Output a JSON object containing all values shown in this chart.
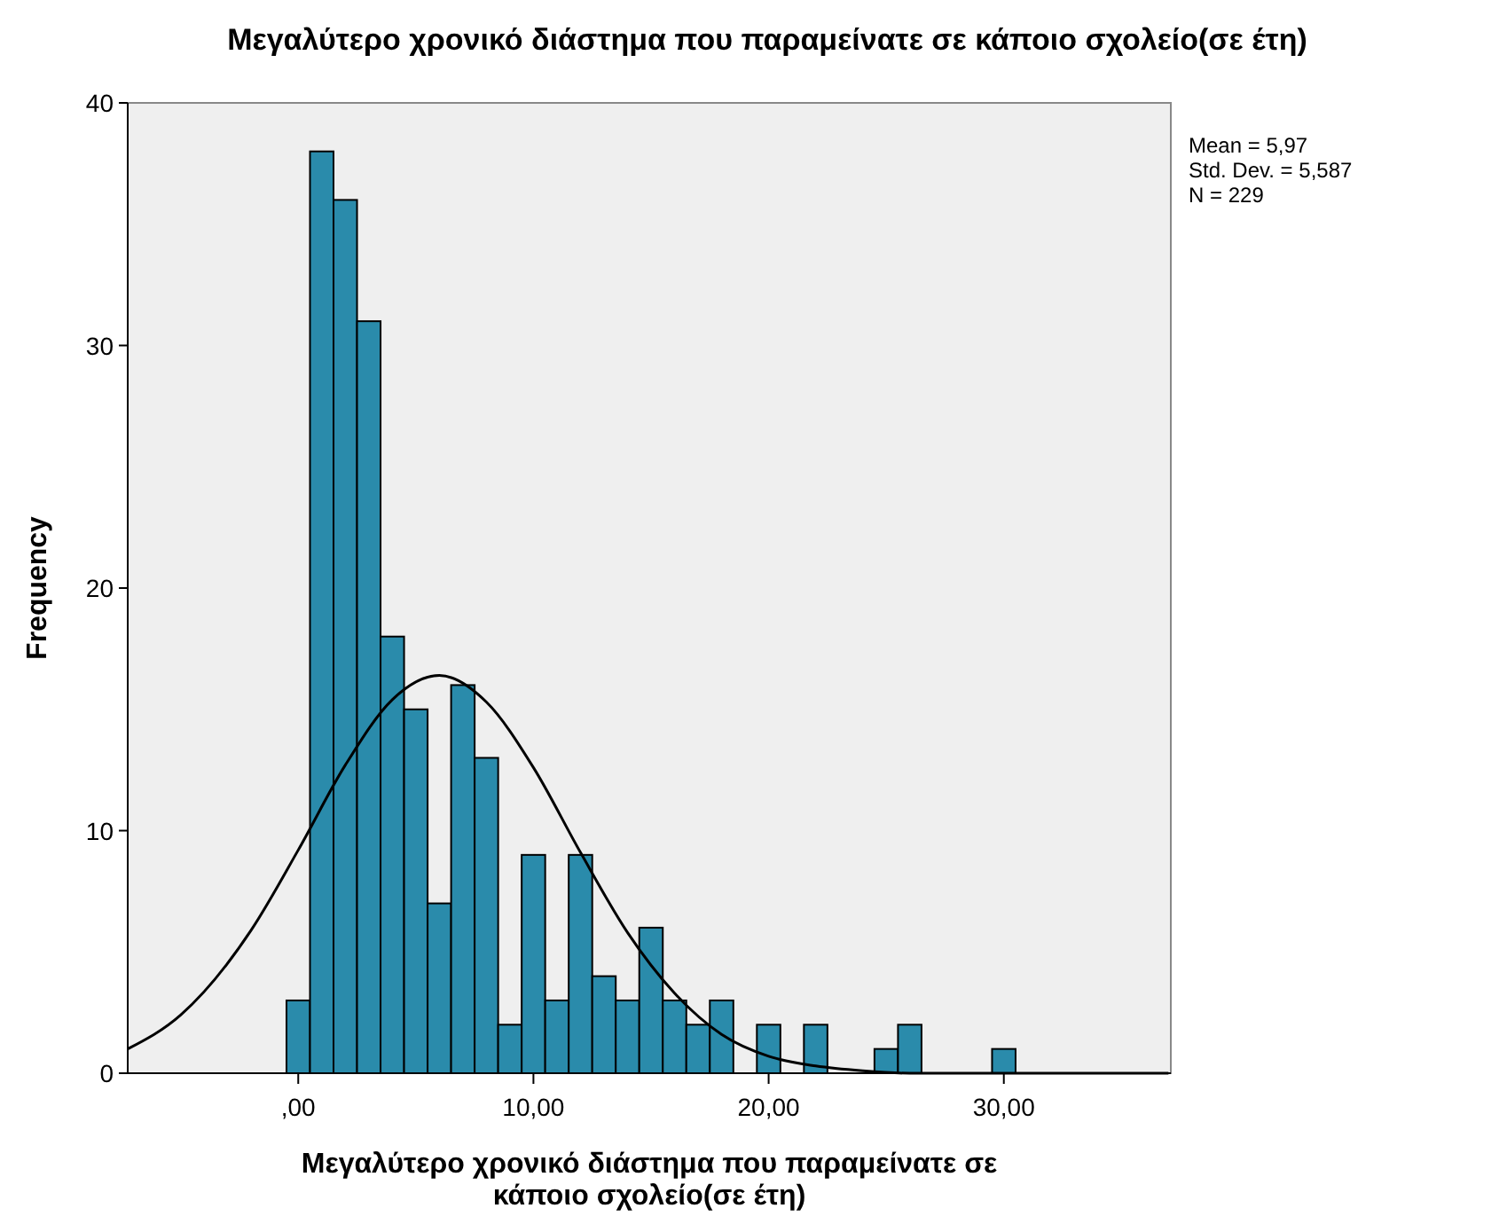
{
  "chart_data": {
    "type": "histogram",
    "title": "Μεγαλύτερο χρονικό διάστημα που παραμείνατε σε κάποιο σχολείο(σε έτη)",
    "xlabel": "Μεγαλύτερο χρονικό διάστημα που παραμείνατε σε κάποιο σχολείο(σε έτη)",
    "ylabel": "Frequency",
    "bins": [
      -0.5,
      0.5,
      1.5,
      2.5,
      3.5,
      4.5,
      5.5,
      6.5,
      7.5,
      8.5,
      9.5,
      10.5,
      11.5,
      12.5,
      13.5,
      14.5,
      15.5,
      16.5,
      17.5,
      18.5,
      19.5,
      20.5,
      21.5,
      22.5,
      23.5,
      24.5,
      25.5,
      26.5,
      27.5,
      28.5,
      29.5,
      30.5
    ],
    "values": [
      3,
      38,
      36,
      31,
      18,
      15,
      7,
      16,
      13,
      2,
      9,
      3,
      9,
      4,
      3,
      6,
      3,
      2,
      3,
      0,
      2,
      0,
      2,
      0,
      0,
      1,
      2,
      0,
      0,
      0,
      1
    ],
    "color": "#2a8bab",
    "series": [
      {
        "type": "line",
        "color": "#000000",
        "x": [
          -7.25,
          -5,
          -2,
          0,
          2,
          4,
          6,
          8,
          10,
          12,
          14,
          16,
          18,
          20,
          22,
          24,
          26,
          30,
          37
        ],
        "values": [
          1.0,
          2.4,
          5.9,
          9.2,
          12.7,
          15.4,
          16.4,
          15.3,
          12.6,
          9.1,
          5.8,
          3.3,
          1.6,
          0.7,
          0.3,
          0.1,
          0,
          0,
          0
        ]
      }
    ],
    "xlim": [
      -7.25,
      37.1
    ],
    "xticks": [
      {
        "value": 0,
        "label": ",00"
      },
      {
        "value": 10,
        "label": "10,00"
      },
      {
        "value": 20,
        "label": "20,00"
      },
      {
        "value": 30,
        "label": "30,00"
      }
    ],
    "ylim": [
      0,
      40
    ],
    "yticks": [
      0,
      10,
      20,
      30,
      40
    ],
    "grid": false,
    "annotations": [
      "Mean = 5,97",
      "Std. Dev. = 5,587",
      "N = 229"
    ]
  }
}
